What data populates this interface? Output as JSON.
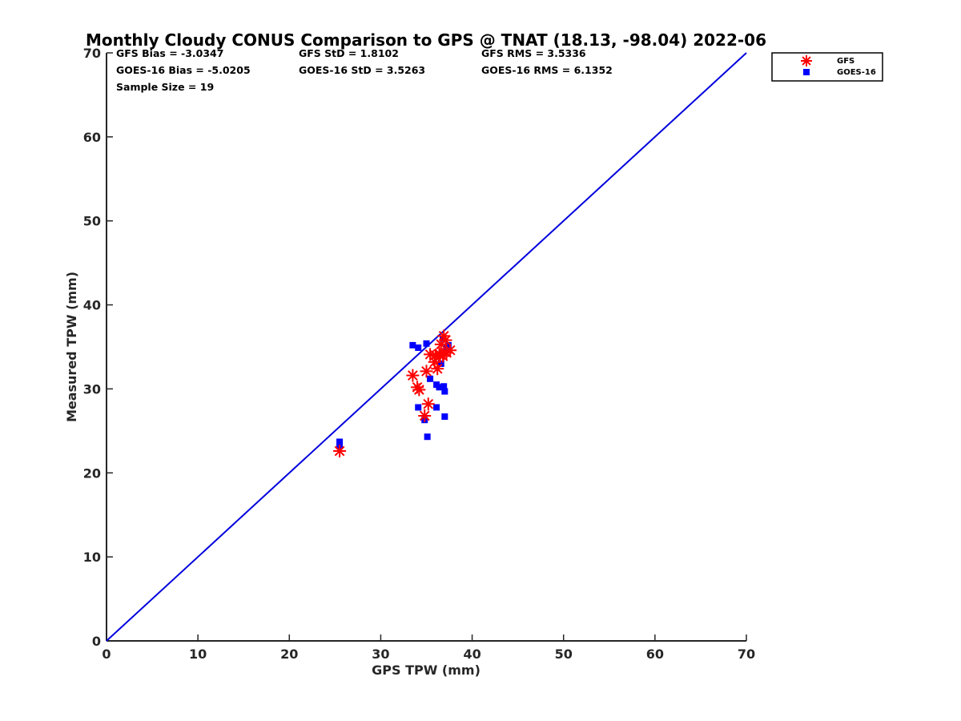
{
  "chart_data": {
    "type": "scatter",
    "title": "Monthly Cloudy CONUS Comparison to GPS @ TNAT (18.13, -98.04) 2022-06",
    "xlabel": "GPS TPW (mm)",
    "ylabel": "Measured TPW (mm)",
    "xlim": [
      0,
      70
    ],
    "ylim": [
      0,
      70
    ],
    "xticks": [
      "0",
      "10",
      "20",
      "30",
      "40",
      "50",
      "60",
      "70"
    ],
    "yticks": [
      "0",
      "10",
      "20",
      "30",
      "40",
      "50",
      "60",
      "70"
    ],
    "grid": false,
    "legend_position": "outside top-right",
    "stats": {
      "gfs_bias": "GFS Bias = -3.0347",
      "gfs_std": "GFS StD = 1.8102",
      "gfs_rms": "GFS RMS = 3.5336",
      "goes_bias": "GOES-16 Bias = -5.0205",
      "goes_std": "GOES-16 StD = 3.5263",
      "goes_rms": "GOES-16 RMS = 6.1352",
      "sample_size": "Sample Size = 19"
    },
    "reference_line": {
      "from": [
        0,
        0
      ],
      "to": [
        70,
        70
      ],
      "color": "#0000dd"
    },
    "series": [
      {
        "name": "GFS",
        "marker": "asterisk",
        "color": "#ff0000",
        "points": [
          [
            25.5,
            22.6
          ],
          [
            33.5,
            31.6
          ],
          [
            34.0,
            30.2
          ],
          [
            34.2,
            29.9
          ],
          [
            35.0,
            32.1
          ],
          [
            35.4,
            34.1
          ],
          [
            35.9,
            33.2
          ],
          [
            36.2,
            32.4
          ],
          [
            36.0,
            34.0
          ],
          [
            36.6,
            35.3
          ],
          [
            36.8,
            33.9
          ],
          [
            36.9,
            36.3
          ],
          [
            37.1,
            35.8
          ],
          [
            37.2,
            34.3
          ],
          [
            37.6,
            34.6
          ],
          [
            36.4,
            34.2
          ],
          [
            35.2,
            28.2
          ],
          [
            34.8,
            26.8
          ],
          [
            36.5,
            34.0
          ]
        ]
      },
      {
        "name": "GOES-16",
        "marker": "square",
        "color": "#0000ff",
        "points": [
          [
            25.5,
            23.7
          ],
          [
            25.5,
            23.2
          ],
          [
            33.5,
            35.2
          ],
          [
            34.1,
            34.9
          ],
          [
            35.0,
            35.4
          ],
          [
            35.4,
            31.2
          ],
          [
            36.1,
            30.5
          ],
          [
            36.4,
            30.2
          ],
          [
            36.6,
            33.0
          ],
          [
            36.9,
            30.3
          ],
          [
            37.0,
            29.7
          ],
          [
            37.4,
            35.2
          ],
          [
            34.1,
            27.8
          ],
          [
            34.8,
            26.3
          ],
          [
            36.1,
            27.8
          ],
          [
            35.1,
            24.3
          ],
          [
            37.0,
            26.7
          ],
          [
            36.8,
            36.0
          ],
          [
            37.2,
            34.8
          ]
        ]
      }
    ]
  }
}
